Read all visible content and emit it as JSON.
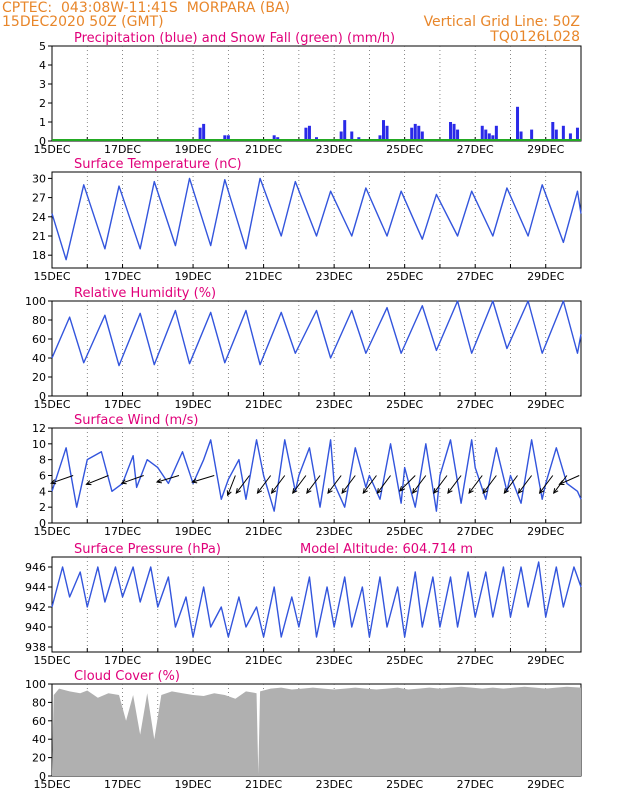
{
  "header": {
    "line1": "CPTEC:  043:08W-11:41S  MORPARA (BA)",
    "line2": "15DEC2020 50Z (GMT)",
    "grid_note": "Vertical Grid Line: 50Z",
    "code": "TQ0126L028"
  },
  "colors": {
    "precip": "#2a2ae8",
    "snow": "#22aa22",
    "line": "#3355dd",
    "title": "#e0007a",
    "header": "#e8862a",
    "cloud": "#b0b0b0",
    "wind_vector": "#000000"
  },
  "x_axis": {
    "labels": [
      "15DEC",
      "17DEC",
      "19DEC",
      "21DEC",
      "23DEC",
      "25DEC",
      "27DEC",
      "29DEC"
    ],
    "start_day": 15,
    "end_day": 30
  },
  "chart_data": [
    {
      "id": "precip",
      "type": "bar",
      "title": "Precipitation (blue) and Snow Fall (green) (mm/h)",
      "ylim": [
        0,
        5
      ],
      "yticks": [
        "0",
        "1",
        "2",
        "3",
        "4",
        "5"
      ],
      "series": [
        {
          "name": "Precipitation",
          "x": [
            19.2,
            19.3,
            19.9,
            20.0,
            21.3,
            21.4,
            22.2,
            22.3,
            22.5,
            23.2,
            23.3,
            23.5,
            23.7,
            24.3,
            24.4,
            24.5,
            25.2,
            25.3,
            25.4,
            25.5,
            26.3,
            26.4,
            26.5,
            27.2,
            27.3,
            27.4,
            27.5,
            27.6,
            28.2,
            28.3,
            28.6,
            29.2,
            29.3,
            29.5,
            29.7,
            29.9
          ],
          "values": [
            0.7,
            0.9,
            0.3,
            0.3,
            0.3,
            0.2,
            0.7,
            0.8,
            0.2,
            0.5,
            1.1,
            0.5,
            0.2,
            0.3,
            1.1,
            0.8,
            0.7,
            0.9,
            0.8,
            0.5,
            1.0,
            0.9,
            0.6,
            0.8,
            0.6,
            0.4,
            0.3,
            0.8,
            1.8,
            0.5,
            0.6,
            1.0,
            0.6,
            0.8,
            0.4,
            0.7
          ]
        },
        {
          "name": "Snow Fall",
          "x": [],
          "values": []
        }
      ]
    },
    {
      "id": "temperature",
      "type": "line",
      "title": "Surface Temperature (nC)",
      "ylim": [
        16,
        31
      ],
      "yticks": [
        "18",
        "21",
        "24",
        "27",
        "30"
      ],
      "series": [
        {
          "name": "",
          "x": [
            15.0,
            15.4,
            15.9,
            16.5,
            16.9,
            17.5,
            17.9,
            18.5,
            18.9,
            19.5,
            19.9,
            20.5,
            20.9,
            21.5,
            21.9,
            22.5,
            22.9,
            23.5,
            23.9,
            24.5,
            24.9,
            25.5,
            25.9,
            26.5,
            26.9,
            27.5,
            27.9,
            28.5,
            28.9,
            29.5,
            29.9,
            30.0
          ],
          "values": [
            24.5,
            17.3,
            29.0,
            19.0,
            28.8,
            19.0,
            29.5,
            19.5,
            30.0,
            19.5,
            29.8,
            19.0,
            30.0,
            21.0,
            29.5,
            21.0,
            28.0,
            21.0,
            28.5,
            21.0,
            28.0,
            20.5,
            27.5,
            21.0,
            28.0,
            21.0,
            28.5,
            21.0,
            29.0,
            20.0,
            28.0,
            24.5
          ]
        }
      ]
    },
    {
      "id": "humidity",
      "type": "line",
      "title": "Relative Humidity (%)",
      "ylim": [
        0,
        100
      ],
      "yticks": [
        "0",
        "20",
        "40",
        "60",
        "80",
        "100"
      ],
      "series": [
        {
          "name": "",
          "x": [
            15.0,
            15.5,
            15.9,
            16.5,
            16.9,
            17.5,
            17.9,
            18.5,
            18.9,
            19.5,
            19.9,
            20.5,
            20.9,
            21.5,
            21.9,
            22.5,
            22.9,
            23.5,
            23.9,
            24.5,
            24.9,
            25.5,
            25.9,
            26.5,
            26.9,
            27.5,
            27.9,
            28.5,
            28.9,
            29.5,
            29.9,
            30.0
          ],
          "values": [
            40,
            83,
            35,
            85,
            32,
            87,
            33,
            90,
            34,
            88,
            35,
            90,
            33,
            88,
            45,
            90,
            40,
            90,
            45,
            93,
            45,
            95,
            48,
            100,
            45,
            100,
            50,
            100,
            45,
            100,
            45,
            65
          ]
        }
      ]
    },
    {
      "id": "wind",
      "type": "line",
      "title": "Surface Wind (m/s)",
      "ylim": [
        0,
        12
      ],
      "yticks": [
        "0",
        "2",
        "4",
        "6",
        "8",
        "10",
        "12"
      ],
      "series": [
        {
          "name": "",
          "x": [
            15.0,
            15.4,
            15.7,
            16.0,
            16.4,
            16.7,
            17.0,
            17.3,
            17.4,
            17.7,
            18.0,
            18.3,
            18.7,
            19.0,
            19.3,
            19.5,
            19.8,
            20.0,
            20.3,
            20.5,
            20.8,
            21.0,
            21.3,
            21.6,
            21.9,
            22.0,
            22.3,
            22.6,
            22.9,
            23.0,
            23.3,
            23.6,
            23.9,
            24.0,
            24.3,
            24.6,
            24.9,
            25.0,
            25.3,
            25.6,
            25.9,
            26.0,
            26.3,
            26.6,
            26.9,
            27.0,
            27.3,
            27.6,
            27.9,
            28.0,
            28.3,
            28.6,
            28.9,
            29.0,
            29.3,
            29.6,
            29.9,
            30.0
          ],
          "values": [
            4,
            9.5,
            2,
            8,
            9,
            4,
            5,
            8.5,
            4.5,
            8,
            7,
            5,
            9,
            5,
            8,
            10.5,
            3,
            5.5,
            8,
            3,
            10.5,
            6,
            1.5,
            10.5,
            4,
            6,
            9.5,
            2,
            10.5,
            5,
            2,
            9.5,
            4.5,
            6,
            3,
            10,
            2.5,
            7,
            2,
            10,
            1.5,
            6,
            10.5,
            2.5,
            10.5,
            7,
            3,
            9.5,
            4,
            6,
            2.5,
            10.5,
            3,
            5,
            9.5,
            5,
            4,
            3
          ]
        }
      ],
      "vectors": [
        {
          "x": 15.6,
          "y": 6.0,
          "u": 1.0,
          "v": -0.35
        },
        {
          "x": 16.6,
          "y": 6.0,
          "u": 1.0,
          "v": -0.4
        },
        {
          "x": 17.6,
          "y": 6.0,
          "u": 1.0,
          "v": -0.35
        },
        {
          "x": 18.6,
          "y": 6.0,
          "u": 1.0,
          "v": -0.3
        },
        {
          "x": 19.6,
          "y": 6.0,
          "u": 1.0,
          "v": -0.3
        },
        {
          "x": 20.2,
          "y": 6.0,
          "u": 0.35,
          "v": -0.9
        },
        {
          "x": 20.6,
          "y": 6.0,
          "u": 0.6,
          "v": -0.8
        },
        {
          "x": 21.2,
          "y": 6.0,
          "u": 0.6,
          "v": -0.8
        },
        {
          "x": 21.6,
          "y": 6.0,
          "u": 0.6,
          "v": -0.8
        },
        {
          "x": 22.2,
          "y": 6.0,
          "u": 0.6,
          "v": -0.8
        },
        {
          "x": 22.6,
          "y": 6.0,
          "u": 0.6,
          "v": -0.8
        },
        {
          "x": 23.2,
          "y": 6.0,
          "u": 0.6,
          "v": -0.8
        },
        {
          "x": 23.6,
          "y": 6.0,
          "u": 0.6,
          "v": -0.8
        },
        {
          "x": 24.2,
          "y": 6.0,
          "u": 0.6,
          "v": -0.8
        },
        {
          "x": 24.6,
          "y": 6.0,
          "u": 0.6,
          "v": -0.8
        },
        {
          "x": 25.3,
          "y": 6.0,
          "u": 0.7,
          "v": -0.7
        },
        {
          "x": 25.6,
          "y": 6.0,
          "u": 0.6,
          "v": -0.8
        },
        {
          "x": 26.2,
          "y": 6.0,
          "u": 0.6,
          "v": -0.8
        },
        {
          "x": 26.6,
          "y": 6.0,
          "u": 0.6,
          "v": -0.8
        },
        {
          "x": 27.2,
          "y": 6.0,
          "u": 0.6,
          "v": -0.8
        },
        {
          "x": 27.6,
          "y": 6.0,
          "u": 0.6,
          "v": -0.8
        },
        {
          "x": 28.2,
          "y": 6.0,
          "u": 0.6,
          "v": -0.8
        },
        {
          "x": 28.6,
          "y": 6.0,
          "u": 0.6,
          "v": -0.8
        },
        {
          "x": 29.2,
          "y": 6.0,
          "u": 0.6,
          "v": -0.8
        },
        {
          "x": 29.6,
          "y": 6.0,
          "u": 0.6,
          "v": -0.8
        },
        {
          "x": 29.95,
          "y": 6.0,
          "u": 0.9,
          "v": -0.4
        }
      ]
    },
    {
      "id": "pressure",
      "type": "line",
      "title": "Surface Pressure (hPa)",
      "annotation": "Model Altitude: 604.714 m",
      "ylim": [
        937.5,
        947
      ],
      "yticks": [
        "938",
        "940",
        "942",
        "944",
        "946"
      ],
      "series": [
        {
          "name": "",
          "x": [
            15.0,
            15.3,
            15.5,
            15.8,
            16.0,
            16.3,
            16.5,
            16.8,
            17.0,
            17.3,
            17.5,
            17.8,
            18.0,
            18.3,
            18.5,
            18.8,
            19.0,
            19.3,
            19.5,
            19.8,
            20.0,
            20.3,
            20.5,
            20.8,
            21.0,
            21.3,
            21.5,
            21.8,
            22.0,
            22.3,
            22.5,
            22.8,
            23.0,
            23.3,
            23.5,
            23.8,
            24.0,
            24.3,
            24.5,
            24.8,
            25.0,
            25.3,
            25.5,
            25.8,
            26.0,
            26.3,
            26.5,
            26.8,
            27.0,
            27.3,
            27.5,
            27.8,
            28.0,
            28.3,
            28.5,
            28.8,
            29.0,
            29.3,
            29.5,
            29.8,
            30.0
          ],
          "values": [
            942,
            946,
            943,
            945.5,
            942,
            946,
            942.5,
            946,
            943,
            946,
            942.5,
            946,
            942,
            945,
            940,
            943,
            939,
            944,
            940,
            942,
            939,
            943,
            940,
            942,
            939,
            944,
            939,
            943,
            940,
            945,
            939,
            944,
            940,
            945,
            940,
            944,
            939,
            945,
            940,
            944,
            939,
            945.5,
            940,
            945,
            940,
            945,
            940,
            945.5,
            941,
            945.5,
            941,
            946,
            941,
            946,
            942,
            946.5,
            941,
            946,
            942,
            946,
            944
          ]
        }
      ]
    },
    {
      "id": "cloud",
      "type": "area",
      "title": "Cloud Cover (%)",
      "ylim": [
        0,
        100
      ],
      "yticks": [
        "0",
        "20",
        "40",
        "60",
        "80",
        "100"
      ],
      "series": [
        {
          "name": "",
          "x": [
            15.0,
            15.05,
            15.2,
            15.5,
            15.8,
            16.0,
            16.3,
            16.6,
            16.9,
            17.1,
            17.3,
            17.5,
            17.7,
            17.9,
            18.1,
            18.4,
            18.7,
            19.0,
            19.3,
            19.6,
            19.9,
            20.2,
            20.5,
            20.8,
            20.85,
            20.9,
            21.2,
            21.5,
            21.8,
            22.1,
            22.4,
            22.7,
            23.0,
            23.3,
            23.6,
            23.9,
            24.2,
            24.5,
            24.8,
            25.1,
            25.4,
            25.7,
            26.0,
            26.3,
            26.6,
            26.9,
            27.2,
            27.5,
            27.8,
            28.1,
            28.4,
            28.7,
            29.0,
            29.3,
            29.6,
            30.0
          ],
          "values": [
            5,
            88,
            95,
            92,
            90,
            93,
            85,
            90,
            88,
            60,
            88,
            45,
            90,
            40,
            88,
            92,
            90,
            88,
            87,
            90,
            88,
            84,
            92,
            90,
            2,
            92,
            95,
            96,
            94,
            95,
            96,
            95,
            94,
            95,
            96,
            95,
            94,
            95,
            96,
            94,
            95,
            96,
            95,
            96,
            97,
            96,
            95,
            96,
            95,
            96,
            97,
            96,
            95,
            96,
            97,
            96
          ]
        }
      ]
    }
  ]
}
